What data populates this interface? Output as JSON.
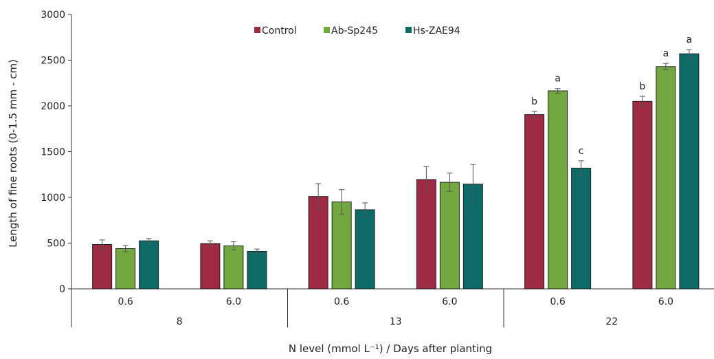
{
  "chart_data": {
    "type": "bar",
    "ylabel": "Length of fine roots (0-1.5 mm - cm)",
    "xlabel": "N level (mmol L⁻¹) / Days after planting",
    "ylim": [
      0,
      3000
    ],
    "yticks": [
      0,
      500,
      1000,
      1500,
      2000,
      2500,
      3000
    ],
    "grid": false,
    "legend_position": "top-center",
    "groups": [
      {
        "label": "8",
        "n_levels": [
          "0.6",
          "6.0"
        ]
      },
      {
        "label": "13",
        "n_levels": [
          "0.6",
          "6.0"
        ]
      },
      {
        "label": "22",
        "n_levels": [
          "0.6",
          "6.0"
        ]
      }
    ],
    "categories": [
      "0.6",
      "6.0",
      "0.6",
      "6.0",
      "0.6",
      "6.0"
    ],
    "series": [
      {
        "name": "Control",
        "color": "#9E2A44",
        "values": [
          485,
          495,
          1010,
          1195,
          1905,
          2050
        ],
        "errors": [
          50,
          30,
          140,
          140,
          35,
          55
        ],
        "labels": [
          "",
          "",
          "",
          "",
          "b",
          "b"
        ]
      },
      {
        "name": "Ab-Sp245",
        "color": "#72A83F",
        "values": [
          440,
          470,
          950,
          1165,
          2165,
          2430
        ],
        "errors": [
          35,
          45,
          135,
          100,
          25,
          35
        ],
        "labels": [
          "",
          "",
          "",
          "",
          "a",
          "a"
        ]
      },
      {
        "name": "Hs-ZAE94",
        "color": "#0D6B67",
        "values": [
          525,
          410,
          865,
          1145,
          1320,
          2570
        ],
        "errors": [
          25,
          25,
          75,
          215,
          80,
          45
        ],
        "labels": [
          "",
          "",
          "",
          "",
          "c",
          "a"
        ]
      }
    ]
  }
}
